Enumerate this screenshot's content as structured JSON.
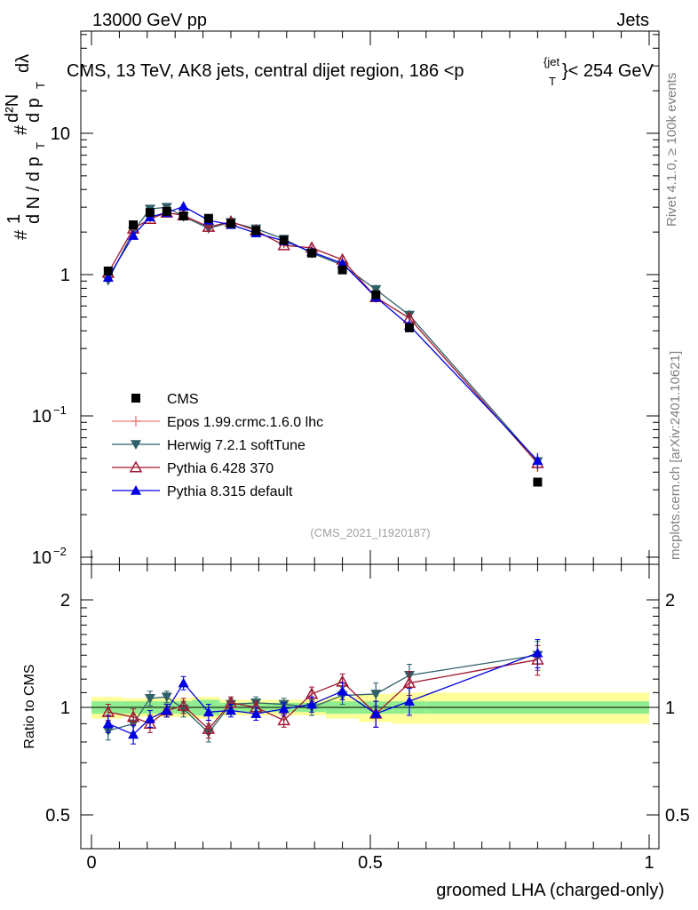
{
  "header": {
    "left": "13000 GeV pp",
    "right": "Jets",
    "title": "CMS, 13 TeV, AK8 jets, central dijet region, 186 <p",
    "title_sup": "{jet",
    "title_sub": "T",
    "title_tail": "}< 254 GeV"
  },
  "side_labels": {
    "rivet": "Rivet 4.1.0, ≥ 100k events",
    "mcplots": "mcplots.cern.ch [arXiv:2401.10621]"
  },
  "analysis_id": "(CMS_2021_I1920187)",
  "y_axis_main": {
    "label_hash": "#",
    "label_1": "1",
    "label_dN": "d N / d p",
    "label_T": "T",
    "label_hash2": "#",
    "label_dp": "d p",
    "label_T2": "T",
    "label_d2N": "d²N",
    "label_dl": "dλ",
    "ticks": [
      {
        "value": 0.01,
        "label": "10",
        "exp": "−2"
      },
      {
        "value": 0.1,
        "label": "10",
        "exp": "−1"
      },
      {
        "value": 1,
        "label": "1",
        "exp": ""
      },
      {
        "value": 10,
        "label": "10",
        "exp": ""
      }
    ]
  },
  "y_axis_ratio": {
    "label": "Ratio to CMS",
    "ticks": [
      "0.5",
      "1",
      "2"
    ]
  },
  "x_axis": {
    "label": "groomed LHA (charged-only)",
    "ticks": [
      "0",
      "0.5",
      "1"
    ]
  },
  "legend": [
    {
      "key": "cms",
      "label": "CMS"
    },
    {
      "key": "epos",
      "label": "Epos 1.99.crmc.1.6.0 lhc"
    },
    {
      "key": "herwig",
      "label": "Herwig 7.2.1 softTune"
    },
    {
      "key": "py6",
      "label": "Pythia 6.428 370"
    },
    {
      "key": "py8",
      "label": "Pythia 8.315 default"
    }
  ],
  "colors": {
    "cms": "#000000",
    "epos": "#f08080",
    "herwig": "#2f6068",
    "py6": "#a01830",
    "py8": "#0000e0",
    "band_inner": "#90ee90",
    "band_outer": "#ffff99"
  },
  "chart_data": {
    "type": "scatter",
    "xlim": [
      0,
      1
    ],
    "ylim_main": [
      0.01,
      60
    ],
    "ylim_ratio": [
      0.4,
      2.4
    ],
    "x": [
      0.03,
      0.075,
      0.105,
      0.135,
      0.165,
      0.21,
      0.25,
      0.295,
      0.345,
      0.395,
      0.45,
      0.51,
      0.57,
      0.8
    ],
    "bins": [
      [
        0,
        0.055
      ],
      [
        0.055,
        0.09
      ],
      [
        0.09,
        0.12
      ],
      [
        0.12,
        0.15
      ],
      [
        0.15,
        0.18
      ],
      [
        0.18,
        0.23
      ],
      [
        0.23,
        0.27
      ],
      [
        0.27,
        0.32
      ],
      [
        0.32,
        0.37
      ],
      [
        0.37,
        0.42
      ],
      [
        0.42,
        0.48
      ],
      [
        0.48,
        0.54
      ],
      [
        0.54,
        0.6
      ],
      [
        0.6,
        1.0
      ]
    ],
    "cms": [
      1.06,
      2.25,
      2.75,
      2.8,
      2.6,
      2.5,
      2.3,
      2.05,
      1.75,
      1.42,
      1.08,
      0.72,
      0.42,
      0.034
    ],
    "band_inner": [
      0.04,
      0.04,
      0.04,
      0.04,
      0.04,
      0.05,
      0.03,
      0.03,
      0.03,
      0.03,
      0.04,
      0.04,
      0.04,
      0.04
    ],
    "band_outer": [
      0.07,
      0.06,
      0.06,
      0.06,
      0.06,
      0.07,
      0.05,
      0.05,
      0.05,
      0.05,
      0.07,
      0.09,
      0.1,
      0.1
    ],
    "series": [
      {
        "key": "herwig",
        "name": "Herwig 7.2.1 softTune",
        "marker": "tri-down-filled",
        "ratio": [
          0.86,
          0.9,
          1.06,
          1.07,
          0.99,
          0.85,
          1.02,
          1.03,
          1.02,
          1.0,
          1.08,
          1.09,
          1.23,
          1.4
        ]
      },
      {
        "key": "py6",
        "name": "Pythia 6.428 370",
        "marker": "tri-up-open",
        "ratio": [
          0.97,
          0.94,
          0.9,
          0.98,
          1.01,
          0.87,
          1.03,
          1.0,
          0.92,
          1.09,
          1.18,
          0.96,
          1.17,
          1.36
        ]
      },
      {
        "key": "py8",
        "name": "Pythia 8.315 default",
        "marker": "tri-up-filled",
        "ratio": [
          0.9,
          0.84,
          0.93,
          0.98,
          1.17,
          0.97,
          0.98,
          0.96,
          0.99,
          1.02,
          1.11,
          0.96,
          1.04,
          1.42
        ]
      }
    ],
    "ratio_errors": [
      0.05,
      0.05,
      0.05,
      0.04,
      0.05,
      0.05,
      0.04,
      0.04,
      0.04,
      0.05,
      0.06,
      0.08,
      0.09,
      0.13
    ]
  }
}
